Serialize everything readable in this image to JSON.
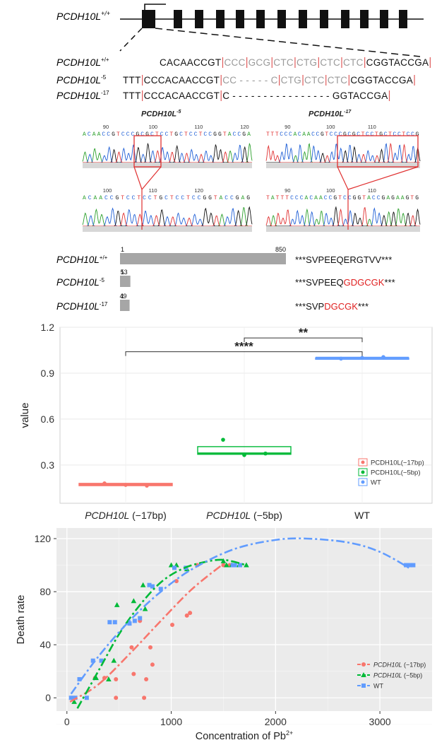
{
  "gene_model": {
    "wt_label": "PCDH10L",
    "wt_sup": "+/+"
  },
  "alignment": {
    "rows": [
      {
        "label": "PCDH10L",
        "sup": "+/+",
        "seq": "CACAACCGT|CCC|GCG|CTC|CTG|CTC|CTC|CGGTACCGA"
      },
      {
        "label": "PCDH10L",
        "sup": "-5",
        "seq": "TTT|CCCACAACCGT|CC - - - - - C|CTG|CTC|CTC|CGGTACCGA"
      },
      {
        "label": "PCDH10L",
        "sup": "-17",
        "seq": "TTT|CCCACAACCGT|C - - - - - - - - - - - - - - - - GGTACCGA"
      }
    ]
  },
  "chromatograms": {
    "left_title": "PCDH10L",
    "left_sup": "-5",
    "right_title": "PCDH10L",
    "right_sup": "-17",
    "left_top": {
      "seq": "ACAACCGTCCCGCGCTCCTGCTCCTCCGGTACCGA",
      "ticks": [
        "90",
        "100",
        "110",
        "120"
      ]
    },
    "left_bottom": {
      "seq": "ACAACCGTCCTCCTGCTCCTCCGGTACCGAG",
      "ticks": [
        "100",
        "110",
        "120"
      ]
    },
    "right_top": {
      "seq": "TTTCCCACAACCGTCCCGCGCTCCTGCTCCTCCG",
      "ticks": [
        "90",
        "100",
        "110"
      ]
    },
    "right_bottom": {
      "seq": "TATTTCCCACAACCGTCCGGTACCGAGAAGTG",
      "ticks": [
        "90",
        "100",
        "110"
      ]
    }
  },
  "proteins": [
    {
      "label": "PCDH10L",
      "sup": "+/+",
      "start": "1",
      "end": "850",
      "length": 850,
      "seq_black": "***SVPEEQERGTVV***",
      "seq_red": "",
      "seq_tail": ""
    },
    {
      "label": "PCDH10L",
      "sup": "-5",
      "start": "1",
      "end": "53",
      "length": 53,
      "seq_black": "***SVPEEQ",
      "seq_red": "GDGCGK",
      "seq_tail": "***"
    },
    {
      "label": "PCDH10L",
      "sup": "-17",
      "start": "1",
      "end": "49",
      "length": 49,
      "seq_black": "***SVP",
      "seq_red": "DGCGK",
      "seq_tail": "***"
    }
  ],
  "chart_data": [
    {
      "type": "box",
      "ylabel": "value",
      "ylim": [
        0.05,
        1.2
      ],
      "yticks": [
        "0.3",
        "0.6",
        "0.9",
        "1.2"
      ],
      "categories": [
        {
          "gene": "PCDH10L",
          "suffix": " (−17bp)",
          "color": "#F8766D",
          "q1": 0.165,
          "median": 0.17,
          "q3": 0.18,
          "points": [
            0.18,
            0.17,
            0.165
          ]
        },
        {
          "gene": "PCDH10L",
          "suffix": " (−5bp)",
          "color": "#00BA38",
          "q1": 0.37,
          "median": 0.375,
          "q3": 0.42,
          "points": [
            0.465,
            0.365,
            0.375
          ]
        },
        {
          "gene": "",
          "suffix": "WT",
          "color": "#619CFF",
          "q1": 0.995,
          "median": 1.0,
          "q3": 1.0,
          "points": [
            0.995,
            1.0,
            1.005
          ]
        }
      ],
      "significance": [
        {
          "label": "****",
          "from": 0,
          "to": 2,
          "y": 1.04
        },
        {
          "label": "**",
          "from": 1,
          "to": 2,
          "y": 1.13
        }
      ],
      "legend": [
        "PCDH10L(−17bp)",
        "PCDH10L(−5bp)",
        "WT"
      ],
      "legend_position": "bottom-right"
    },
    {
      "type": "scatter",
      "xlabel": "Concentration of Pb",
      "xlabel_sup": "2+",
      "ylabel": "Death rate",
      "xlim": [
        -100,
        3500
      ],
      "ylim": [
        -10,
        128
      ],
      "xticks": [
        "0",
        "1000",
        "2000",
        "3000"
      ],
      "yticks": [
        "0",
        "40",
        "80",
        "120"
      ],
      "legend_position": "bottom-right",
      "series": [
        {
          "name_gene": "PCDH10L",
          "name_suffix": " (−17bp)",
          "color": "#F8766D",
          "marker": "circle",
          "points": [
            [
              50,
              0
            ],
            [
              70,
              0
            ],
            [
              270,
              15
            ],
            [
              360,
              15
            ],
            [
              470,
              0
            ],
            [
              470,
              14
            ],
            [
              620,
              38
            ],
            [
              640,
              18
            ],
            [
              700,
              58
            ],
            [
              740,
              0
            ],
            [
              760,
              14
            ],
            [
              800,
              38
            ],
            [
              820,
              25
            ],
            [
              1010,
              55
            ],
            [
              1050,
              88
            ],
            [
              1150,
              62
            ],
            [
              1180,
              64
            ],
            [
              1250,
              100
            ],
            [
              1500,
              100
            ],
            [
              1560,
              100
            ]
          ],
          "fit": [
            [
              30,
              -3
            ],
            [
              300,
              10
            ],
            [
              600,
              33
            ],
            [
              900,
              58
            ],
            [
              1200,
              82
            ],
            [
              1500,
              101
            ]
          ]
        },
        {
          "name_gene": "PCDH10L",
          "name_suffix": " (−5bp)",
          "color": "#00BA38",
          "marker": "triangle",
          "points": [
            [
              70,
              -3
            ],
            [
              280,
              15
            ],
            [
              400,
              14
            ],
            [
              450,
              28
            ],
            [
              480,
              70
            ],
            [
              640,
              73
            ],
            [
              730,
              85
            ],
            [
              750,
              67
            ],
            [
              1000,
              100
            ],
            [
              1050,
              100
            ],
            [
              1150,
              97
            ],
            [
              1500,
              103
            ],
            [
              1530,
              100
            ],
            [
              1580,
              100
            ],
            [
              1650,
              100
            ],
            [
              1720,
              100
            ]
          ],
          "fit": [
            [
              100,
              -8
            ],
            [
              300,
              20
            ],
            [
              500,
              48
            ],
            [
              700,
              70
            ],
            [
              900,
              87
            ],
            [
              1100,
              97
            ],
            [
              1300,
              102
            ],
            [
              1500,
              104
            ],
            [
              1720,
              100
            ]
          ]
        },
        {
          "name_gene": "",
          "name_suffix": "WT",
          "color": "#619CFF",
          "marker": "square",
          "points": [
            [
              40,
              0
            ],
            [
              80,
              0
            ],
            [
              120,
              14
            ],
            [
              190,
              0
            ],
            [
              250,
              28
            ],
            [
              330,
              28
            ],
            [
              410,
              57
            ],
            [
              460,
              57
            ],
            [
              600,
              56
            ],
            [
              650,
              58
            ],
            [
              700,
              60
            ],
            [
              790,
              85
            ],
            [
              820,
              84
            ],
            [
              900,
              82
            ],
            [
              1030,
              98
            ],
            [
              1140,
              98
            ],
            [
              1590,
              100
            ],
            [
              1610,
              100
            ],
            [
              1660,
              100
            ],
            [
              3250,
              100
            ],
            [
              3290,
              100
            ],
            [
              3320,
              100
            ]
          ],
          "fit": [
            [
              40,
              3
            ],
            [
              300,
              31
            ],
            [
              600,
              58
            ],
            [
              900,
              80
            ],
            [
              1200,
              97
            ],
            [
              1600,
              112
            ],
            [
              2000,
              119
            ],
            [
              2300,
              120
            ],
            [
              2700,
              117
            ],
            [
              3000,
              110
            ],
            [
              3300,
              97
            ]
          ]
        }
      ]
    }
  ]
}
